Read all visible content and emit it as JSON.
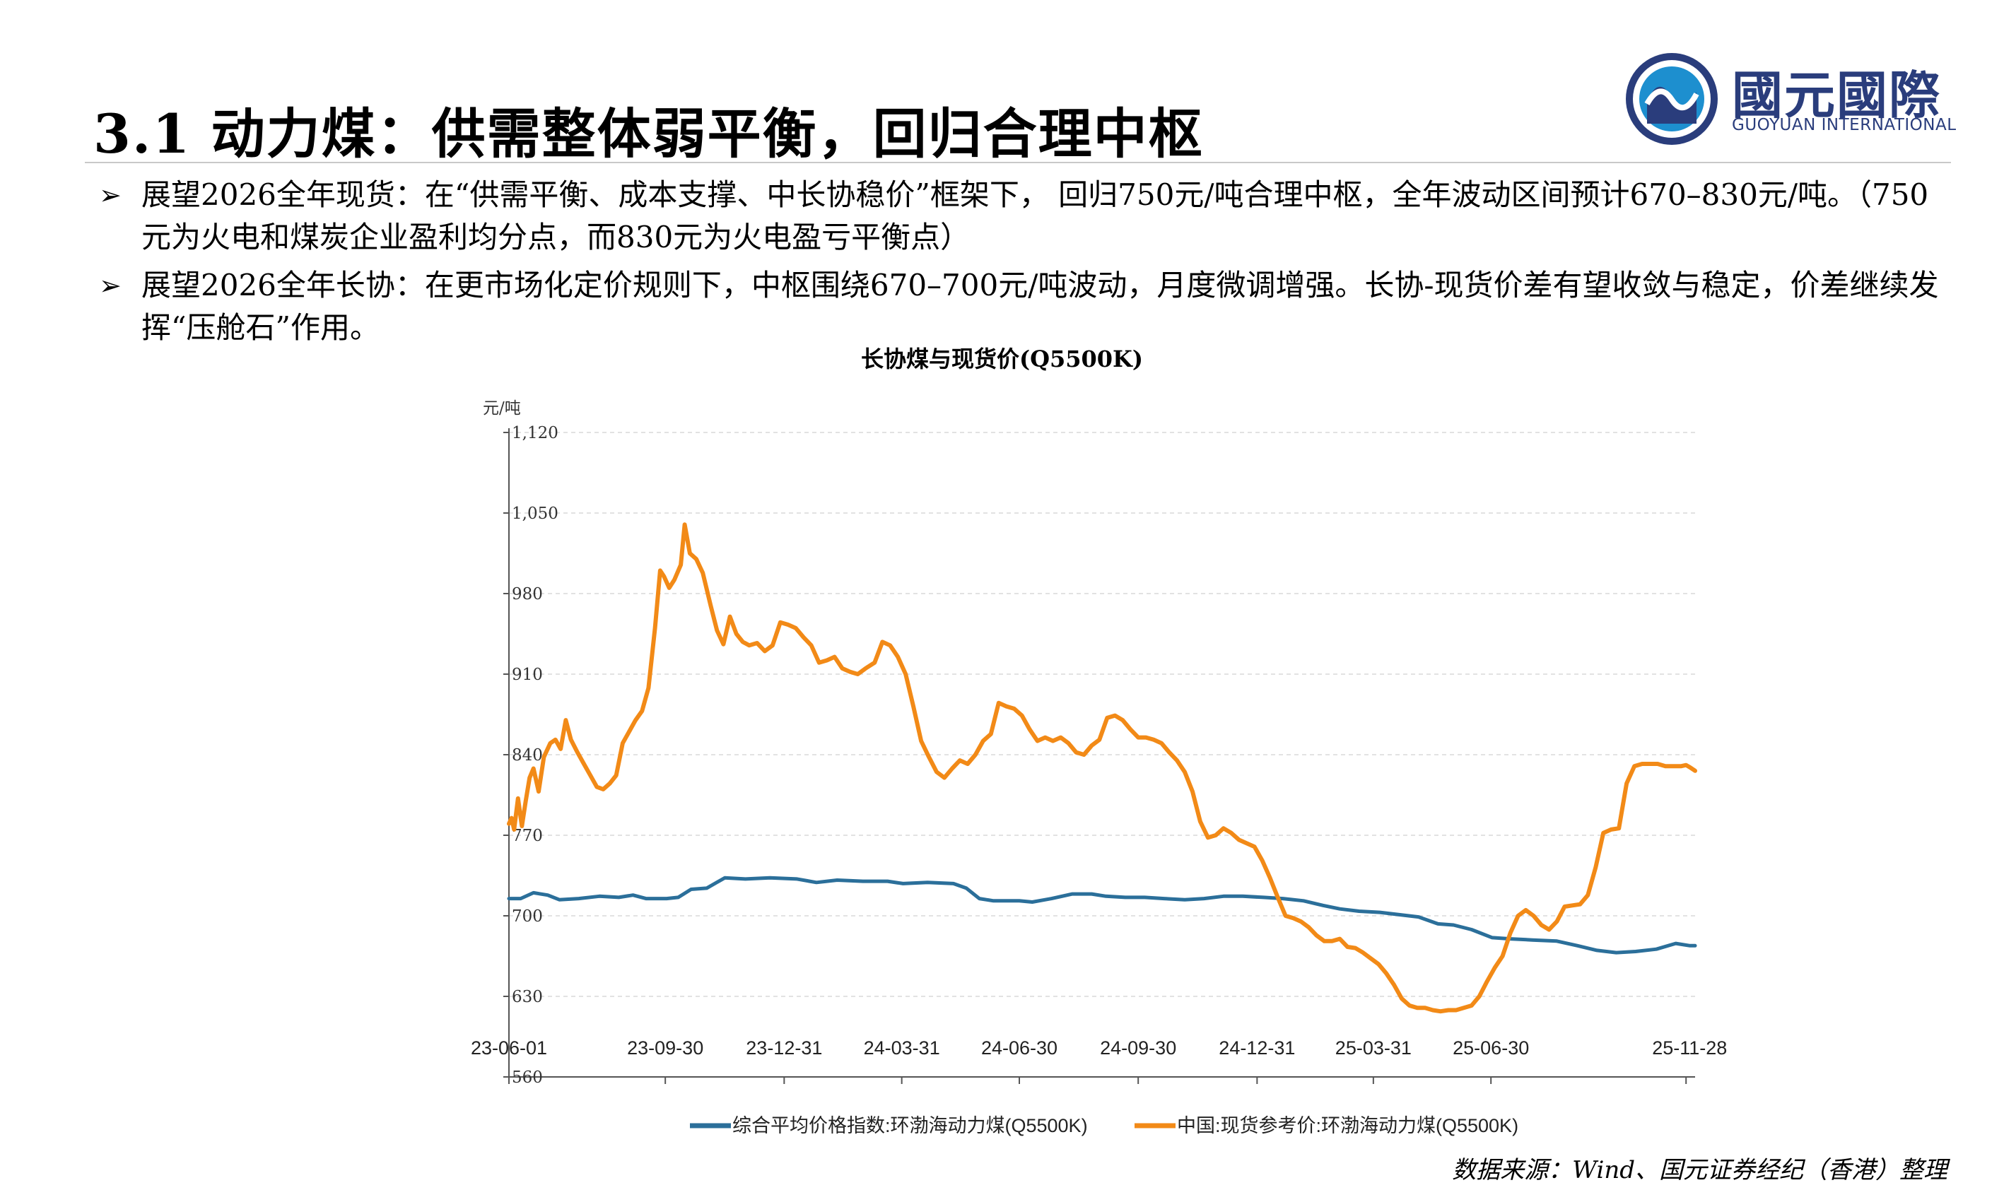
{
  "header": {
    "title": "3.1 动力煤：供需整体弱平衡，回归合理中枢"
  },
  "logo": {
    "name_cn": "國元國際",
    "name_en": "GUOYUAN INTERNATIONAL"
  },
  "bullets": [
    {
      "text": "展望2026全年现货：在“供需平衡、成本支撑、中长协稳价”框架下， 回归750元/吨合理中枢，全年波动区间预计670–830元/吨。（750元为火电和煤炭企业盈利均分点，而830元为火电盈亏平衡点）"
    },
    {
      "text": "展望2026全年长协：在更市场化定价规则下，中枢围绕670–700元/吨波动，月度微调增强。长协-现货价差有望收敛与稳定，价差继续发挥“压舱石”作用。"
    }
  ],
  "source": "数据来源：Wind、国元证券经纪（香港）整理",
  "chart_data": {
    "type": "line",
    "title": "长协煤与现货价(Q5500K)",
    "ylabel": "元/吨",
    "ylim": [
      560,
      1120
    ],
    "yticks": [
      "560",
      "630",
      "700",
      "770",
      "840",
      "910",
      "980",
      "1,050",
      "1,120"
    ],
    "xlim": [
      "2023-06-01",
      "2025-12-05"
    ],
    "xticks": [
      {
        "date": "2023-06-01",
        "label": "23-06-01"
      },
      {
        "date": "2023-09-30",
        "label": "23-09-30"
      },
      {
        "date": "2023-12-31",
        "label": "23-12-31"
      },
      {
        "date": "2024-03-31",
        "label": "24-03-31"
      },
      {
        "date": "2024-06-30",
        "label": "24-06-30"
      },
      {
        "date": "2024-09-30",
        "label": "24-09-30"
      },
      {
        "date": "2024-12-31",
        "label": "24-12-31"
      },
      {
        "date": "2025-03-31",
        "label": "25-03-31"
      },
      {
        "date": "2025-06-30",
        "label": "25-06-30"
      },
      {
        "date": "2025-11-28",
        "label": "25-11-28"
      }
    ],
    "grid": true,
    "legend_position": "bottom",
    "series": [
      {
        "name": "综合平均价格指数:环渤海动力煤(Q5500K)",
        "color": "#2b6f9a",
        "points": [
          [
            "2023-06-01",
            715
          ],
          [
            "2023-06-10",
            715
          ],
          [
            "2023-06-20",
            720
          ],
          [
            "2023-07-01",
            718
          ],
          [
            "2023-07-10",
            714
          ],
          [
            "2023-07-25",
            715
          ],
          [
            "2023-08-10",
            717
          ],
          [
            "2023-08-25",
            716
          ],
          [
            "2023-09-05",
            718
          ],
          [
            "2023-09-15",
            715
          ],
          [
            "2023-10-01",
            715
          ],
          [
            "2023-10-10",
            716
          ],
          [
            "2023-10-20",
            723
          ],
          [
            "2023-11-01",
            724
          ],
          [
            "2023-11-15",
            733
          ],
          [
            "2023-12-01",
            732
          ],
          [
            "2023-12-20",
            733
          ],
          [
            "2024-01-10",
            732
          ],
          [
            "2024-01-25",
            729
          ],
          [
            "2024-02-10",
            731
          ],
          [
            "2024-03-01",
            730
          ],
          [
            "2024-03-20",
            730
          ],
          [
            "2024-04-01",
            728
          ],
          [
            "2024-04-20",
            729
          ],
          [
            "2024-05-10",
            728
          ],
          [
            "2024-05-20",
            724
          ],
          [
            "2024-05-30",
            715
          ],
          [
            "2024-06-10",
            713
          ],
          [
            "2024-06-30",
            713
          ],
          [
            "2024-07-10",
            712
          ],
          [
            "2024-07-25",
            715
          ],
          [
            "2024-08-10",
            719
          ],
          [
            "2024-08-25",
            719
          ],
          [
            "2024-09-05",
            717
          ],
          [
            "2024-09-20",
            716
          ],
          [
            "2024-10-05",
            716
          ],
          [
            "2024-10-20",
            715
          ],
          [
            "2024-11-05",
            714
          ],
          [
            "2024-11-20",
            715
          ],
          [
            "2024-12-05",
            717
          ],
          [
            "2024-12-20",
            717
          ],
          [
            "2025-01-05",
            716
          ],
          [
            "2025-01-20",
            715
          ],
          [
            "2025-02-05",
            713
          ],
          [
            "2025-02-20",
            709
          ],
          [
            "2025-03-05",
            706
          ],
          [
            "2025-03-20",
            704
          ],
          [
            "2025-04-05",
            703
          ],
          [
            "2025-04-20",
            701
          ],
          [
            "2025-05-05",
            699
          ],
          [
            "2025-05-20",
            693
          ],
          [
            "2025-06-01",
            692
          ],
          [
            "2025-06-15",
            688
          ],
          [
            "2025-07-01",
            681
          ],
          [
            "2025-07-15",
            680
          ],
          [
            "2025-08-01",
            679
          ],
          [
            "2025-08-20",
            678
          ],
          [
            "2025-09-05",
            674
          ],
          [
            "2025-09-20",
            670
          ],
          [
            "2025-10-05",
            668
          ],
          [
            "2025-10-20",
            669
          ],
          [
            "2025-11-05",
            671
          ],
          [
            "2025-11-20",
            676
          ],
          [
            "2025-12-01",
            674
          ],
          [
            "2025-12-05",
            674
          ]
        ]
      },
      {
        "name": "中国:现货参考价:环渤海动力煤(Q5500K)",
        "color": "#f28a17",
        "points": [
          [
            "2023-06-01",
            780
          ],
          [
            "2023-06-03",
            785
          ],
          [
            "2023-06-05",
            775
          ],
          [
            "2023-06-08",
            802
          ],
          [
            "2023-06-11",
            778
          ],
          [
            "2023-06-14",
            800
          ],
          [
            "2023-06-17",
            820
          ],
          [
            "2023-06-20",
            828
          ],
          [
            "2023-06-24",
            808
          ],
          [
            "2023-06-28",
            838
          ],
          [
            "2023-07-03",
            850
          ],
          [
            "2023-07-07",
            853
          ],
          [
            "2023-07-11",
            845
          ],
          [
            "2023-07-15",
            870
          ],
          [
            "2023-07-19",
            853
          ],
          [
            "2023-07-24",
            842
          ],
          [
            "2023-07-29",
            832
          ],
          [
            "2023-08-03",
            822
          ],
          [
            "2023-08-08",
            812
          ],
          [
            "2023-08-13",
            810
          ],
          [
            "2023-08-18",
            815
          ],
          [
            "2023-08-23",
            822
          ],
          [
            "2023-08-28",
            850
          ],
          [
            "2023-09-02",
            860
          ],
          [
            "2023-09-07",
            870
          ],
          [
            "2023-09-12",
            878
          ],
          [
            "2023-09-17",
            898
          ],
          [
            "2023-09-22",
            950
          ],
          [
            "2023-09-26",
            1000
          ],
          [
            "2023-09-29",
            995
          ],
          [
            "2023-10-03",
            985
          ],
          [
            "2023-10-07",
            992
          ],
          [
            "2023-10-12",
            1005
          ],
          [
            "2023-10-15",
            1040
          ],
          [
            "2023-10-19",
            1015
          ],
          [
            "2023-10-24",
            1010
          ],
          [
            "2023-10-29",
            998
          ],
          [
            "2023-11-04",
            970
          ],
          [
            "2023-11-09",
            948
          ],
          [
            "2023-11-14",
            936
          ],
          [
            "2023-11-19",
            960
          ],
          [
            "2023-11-24",
            945
          ],
          [
            "2023-11-29",
            938
          ],
          [
            "2023-12-04",
            935
          ],
          [
            "2023-12-10",
            937
          ],
          [
            "2023-12-16",
            930
          ],
          [
            "2023-12-22",
            935
          ],
          [
            "2023-12-28",
            955
          ],
          [
            "2024-01-03",
            953
          ],
          [
            "2024-01-09",
            950
          ],
          [
            "2024-01-15",
            942
          ],
          [
            "2024-01-21",
            935
          ],
          [
            "2024-01-27",
            920
          ],
          [
            "2024-02-02",
            922
          ],
          [
            "2024-02-08",
            925
          ],
          [
            "2024-02-14",
            915
          ],
          [
            "2024-02-20",
            912
          ],
          [
            "2024-02-26",
            910
          ],
          [
            "2024-03-03",
            915
          ],
          [
            "2024-03-10",
            920
          ],
          [
            "2024-03-16",
            938
          ],
          [
            "2024-03-22",
            935
          ],
          [
            "2024-03-28",
            925
          ],
          [
            "2024-04-03",
            910
          ],
          [
            "2024-04-09",
            882
          ],
          [
            "2024-04-15",
            852
          ],
          [
            "2024-04-21",
            838
          ],
          [
            "2024-04-27",
            825
          ],
          [
            "2024-05-03",
            820
          ],
          [
            "2024-05-09",
            828
          ],
          [
            "2024-05-15",
            835
          ],
          [
            "2024-05-21",
            832
          ],
          [
            "2024-05-27",
            840
          ],
          [
            "2024-06-02",
            852
          ],
          [
            "2024-06-08",
            858
          ],
          [
            "2024-06-14",
            885
          ],
          [
            "2024-06-20",
            882
          ],
          [
            "2024-06-26",
            880
          ],
          [
            "2024-07-02",
            874
          ],
          [
            "2024-07-08",
            862
          ],
          [
            "2024-07-14",
            852
          ],
          [
            "2024-07-20",
            855
          ],
          [
            "2024-07-26",
            852
          ],
          [
            "2024-08-01",
            855
          ],
          [
            "2024-08-07",
            850
          ],
          [
            "2024-08-13",
            842
          ],
          [
            "2024-08-19",
            840
          ],
          [
            "2024-08-25",
            848
          ],
          [
            "2024-08-31",
            853
          ],
          [
            "2024-09-06",
            872
          ],
          [
            "2024-09-12",
            874
          ],
          [
            "2024-09-18",
            870
          ],
          [
            "2024-09-24",
            862
          ],
          [
            "2024-09-30",
            855
          ],
          [
            "2024-10-06",
            855
          ],
          [
            "2024-10-12",
            853
          ],
          [
            "2024-10-18",
            850
          ],
          [
            "2024-10-24",
            842
          ],
          [
            "2024-10-30",
            835
          ],
          [
            "2024-11-05",
            825
          ],
          [
            "2024-11-11",
            808
          ],
          [
            "2024-11-17",
            782
          ],
          [
            "2024-11-23",
            768
          ],
          [
            "2024-11-29",
            770
          ],
          [
            "2024-12-05",
            776
          ],
          [
            "2024-12-11",
            772
          ],
          [
            "2024-12-17",
            766
          ],
          [
            "2024-12-23",
            763
          ],
          [
            "2024-12-29",
            760
          ],
          [
            "2025-01-04",
            748
          ],
          [
            "2025-01-10",
            733
          ],
          [
            "2025-01-16",
            716
          ],
          [
            "2025-01-22",
            700
          ],
          [
            "2025-01-28",
            698
          ],
          [
            "2025-02-03",
            695
          ],
          [
            "2025-02-09",
            690
          ],
          [
            "2025-02-15",
            683
          ],
          [
            "2025-02-21",
            678
          ],
          [
            "2025-02-27",
            678
          ],
          [
            "2025-03-05",
            680
          ],
          [
            "2025-03-11",
            673
          ],
          [
            "2025-03-17",
            672
          ],
          [
            "2025-03-23",
            668
          ],
          [
            "2025-03-29",
            663
          ],
          [
            "2025-04-04",
            658
          ],
          [
            "2025-04-10",
            650
          ],
          [
            "2025-04-16",
            640
          ],
          [
            "2025-04-22",
            628
          ],
          [
            "2025-04-28",
            622
          ],
          [
            "2025-05-04",
            620
          ],
          [
            "2025-05-10",
            620
          ],
          [
            "2025-05-16",
            618
          ],
          [
            "2025-05-22",
            617
          ],
          [
            "2025-05-28",
            618
          ],
          [
            "2025-06-03",
            618
          ],
          [
            "2025-06-09",
            620
          ],
          [
            "2025-06-15",
            622
          ],
          [
            "2025-06-21",
            630
          ],
          [
            "2025-06-27",
            643
          ],
          [
            "2025-07-03",
            655
          ],
          [
            "2025-07-09",
            665
          ],
          [
            "2025-07-15",
            685
          ],
          [
            "2025-07-21",
            700
          ],
          [
            "2025-07-27",
            705
          ],
          [
            "2025-08-02",
            700
          ],
          [
            "2025-08-08",
            692
          ],
          [
            "2025-08-14",
            688
          ],
          [
            "2025-08-20",
            695
          ],
          [
            "2025-08-26",
            708
          ],
          [
            "2025-09-01",
            709
          ],
          [
            "2025-09-07",
            710
          ],
          [
            "2025-09-13",
            718
          ],
          [
            "2025-09-19",
            742
          ],
          [
            "2025-09-25",
            772
          ],
          [
            "2025-10-01",
            775
          ],
          [
            "2025-10-07",
            776
          ],
          [
            "2025-10-13",
            815
          ],
          [
            "2025-10-19",
            830
          ],
          [
            "2025-10-25",
            832
          ],
          [
            "2025-10-31",
            832
          ],
          [
            "2025-11-06",
            832
          ],
          [
            "2025-11-12",
            830
          ],
          [
            "2025-11-18",
            830
          ],
          [
            "2025-11-24",
            830
          ],
          [
            "2025-11-28",
            831
          ],
          [
            "2025-12-01",
            829
          ],
          [
            "2025-12-05",
            826
          ]
        ]
      }
    ]
  }
}
